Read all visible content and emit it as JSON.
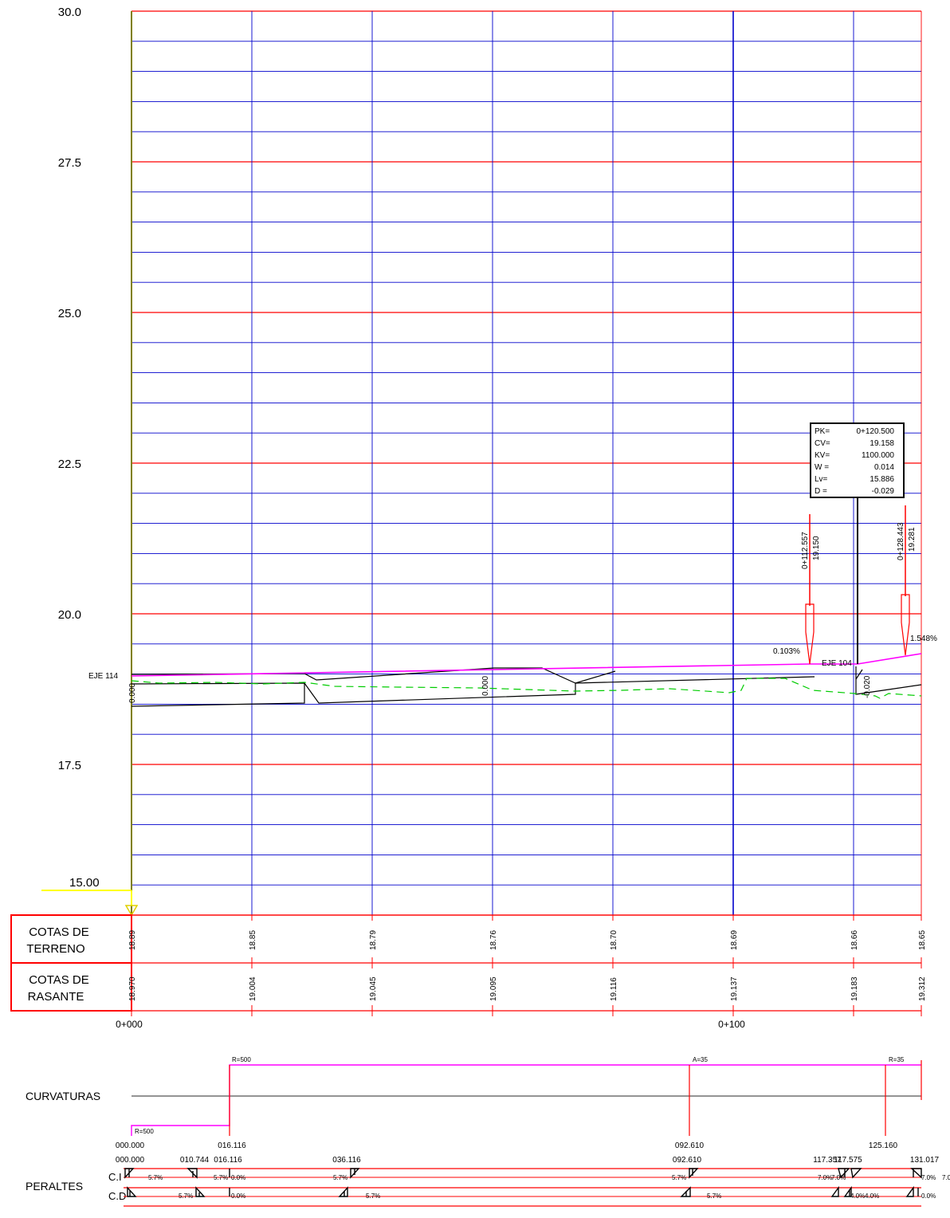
{
  "elevation_axis": {
    "labels": [
      "30.0",
      "27.5",
      "25.0",
      "22.5",
      "20.0",
      "17.5"
    ],
    "datum": "15.00"
  },
  "profile": {
    "axis_labels": [
      {
        "text": "EJE 114"
      },
      {
        "text": "EJE 104"
      }
    ],
    "grade_labels": [
      "0.103%",
      "1.548%"
    ],
    "vertical_texts": [
      "0.000",
      "0.000",
      "-0.020"
    ],
    "markers": [
      {
        "station": "0+112.557",
        "elevation": "19.150"
      },
      {
        "station": "0+128.443",
        "elevation": "19.281"
      }
    ],
    "vertical_curve_box": [
      {
        "key": "PK=",
        "value": "0+120.500"
      },
      {
        "key": "CV=",
        "value": "19.158"
      },
      {
        "key": "KV=",
        "value": "1100.000"
      },
      {
        "key": "W =",
        "value": "0.014"
      },
      {
        "key": "Lv=",
        "value": "15.886"
      },
      {
        "key": "D =",
        "value": "-0.029"
      }
    ]
  },
  "tables": {
    "terrain_title": [
      "COTAS DE",
      "TERRENO"
    ],
    "terrain_values": [
      "18.89",
      "18.85",
      "18.79",
      "18.76",
      "18.70",
      "18.69",
      "18.66",
      "18.65"
    ],
    "rasante_title": [
      "COTAS DE",
      "RASANTE"
    ],
    "rasante_values": [
      "18.970",
      "19.004",
      "19.045",
      "19.095",
      "19.116",
      "19.137",
      "19.183",
      "19.312"
    ],
    "stations": [
      "0+000",
      "0+100"
    ]
  },
  "curvaturas": {
    "title": "CURVATURAS",
    "labels": [
      "R=500",
      "R=500",
      "A=35",
      "R=35"
    ],
    "stations": [
      "000.000",
      "016.116",
      "092.610",
      "125.160"
    ]
  },
  "peraltes": {
    "title": "PERALTES",
    "ci_label": "C.I",
    "cd_label": "C.D",
    "stations": [
      "000.000",
      "010.744",
      "016.116",
      "036.116",
      "092.610",
      "117.357",
      "117.575",
      "131.017"
    ],
    "ci_values": [
      "5.7%",
      "5.7%",
      "0.0%",
      "5.7%",
      "5.7%",
      "7.0%",
      "7.0%",
      "7.0%",
      "7.0"
    ],
    "cd_values": [
      "5.7%",
      "0.0%",
      "5.7%",
      "5.7%",
      "4.0%",
      "4.0%",
      "0.0%"
    ]
  },
  "colors": {
    "grid_red": "#ff0000",
    "grid_blue": "#0000cc",
    "rasante": "#ff00ff",
    "terrain": "#00cc00",
    "axis": "#808000",
    "datum": "#ffff00"
  }
}
